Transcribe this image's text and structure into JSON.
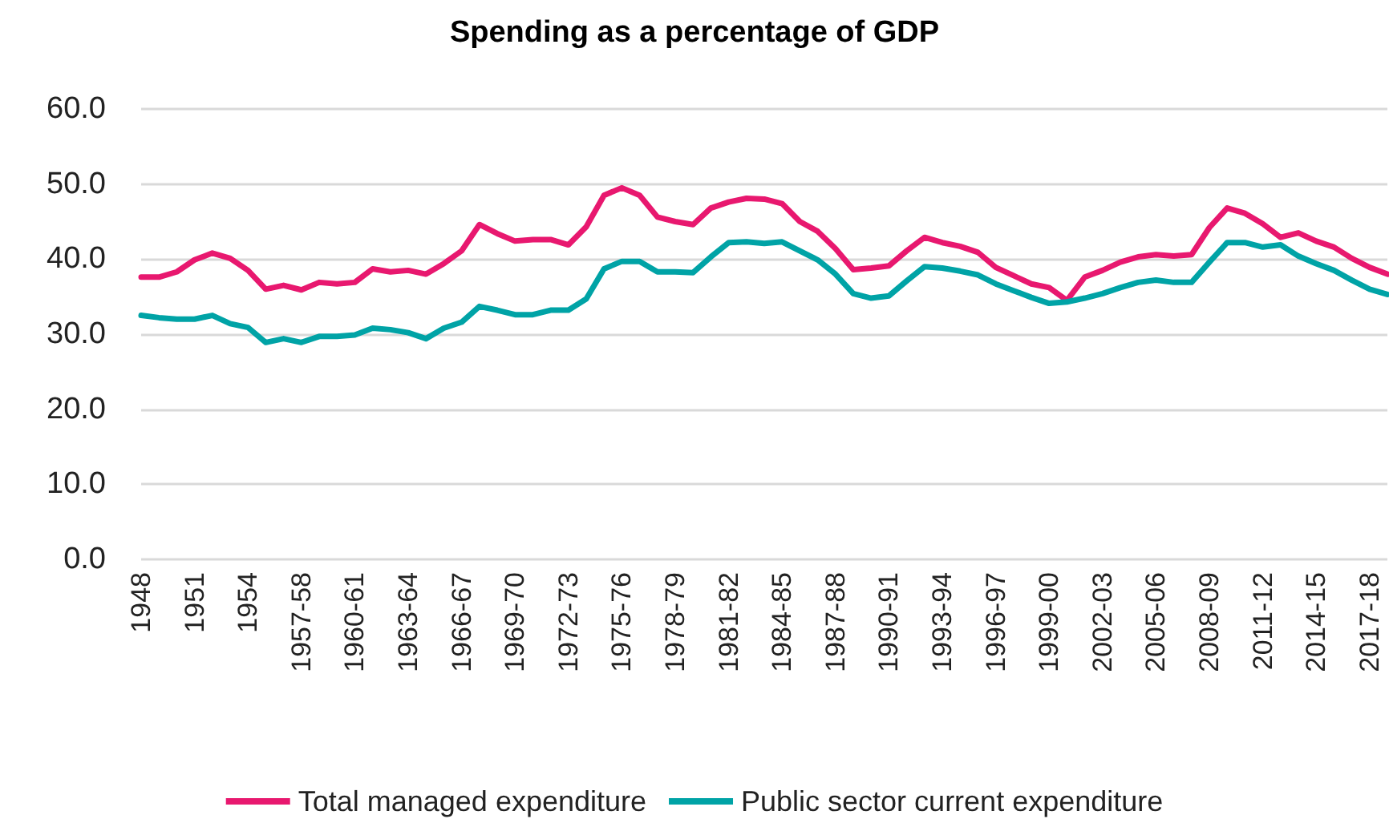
{
  "chart_data": {
    "type": "line",
    "title": "Spending as a percentage of GDP",
    "categories": [
      "1948",
      null,
      null,
      "1951",
      null,
      null,
      "1954",
      null,
      null,
      "1957-58",
      null,
      null,
      "1960-61",
      null,
      null,
      "1963-64",
      null,
      null,
      "1966-67",
      null,
      null,
      "1969-70",
      null,
      null,
      "1972-73",
      null,
      null,
      "1975-76",
      null,
      null,
      "1978-79",
      null,
      null,
      "1981-82",
      null,
      null,
      "1984-85",
      null,
      null,
      "1987-88",
      null,
      null,
      "1990-91",
      null,
      null,
      "1993-94",
      null,
      null,
      "1996-97",
      null,
      null,
      "1999-00",
      null,
      null,
      "2002-03",
      null,
      null,
      "2005-06",
      null,
      null,
      "2008-09",
      null,
      null,
      "2011-12",
      null,
      null,
      "2014-15",
      null,
      null,
      "2017-18",
      null
    ],
    "series": [
      {
        "name": "Total managed expenditure",
        "color": "#e8186f",
        "values": [
          37.6,
          37.6,
          38.3,
          39.9,
          40.8,
          40.1,
          38.5,
          36.0,
          36.5,
          35.9,
          36.9,
          36.7,
          36.9,
          38.7,
          38.3,
          38.5,
          38.0,
          39.4,
          41.1,
          44.6,
          43.4,
          42.4,
          42.6,
          42.6,
          41.9,
          44.3,
          48.5,
          49.5,
          48.5,
          45.6,
          45.0,
          44.6,
          46.8,
          47.6,
          48.1,
          48.0,
          47.4,
          45.0,
          43.7,
          41.4,
          38.6,
          38.8,
          39.1,
          41.1,
          42.9,
          42.2,
          41.7,
          40.9,
          38.9,
          37.8,
          36.7,
          36.2,
          34.5,
          37.6,
          38.5,
          39.6,
          40.3,
          40.6,
          40.4,
          40.6,
          44.2,
          46.8,
          46.1,
          44.7,
          42.9,
          43.5,
          42.4,
          41.6,
          40.1,
          38.9,
          38.0
        ]
      },
      {
        "name": "Public sector current expenditure",
        "color": "#00a3a6",
        "values": [
          32.5,
          32.2,
          32.0,
          32.0,
          32.5,
          31.4,
          30.9,
          28.9,
          29.4,
          28.9,
          29.7,
          29.7,
          29.9,
          30.8,
          30.6,
          30.2,
          29.4,
          30.8,
          31.6,
          33.7,
          33.2,
          32.6,
          32.6,
          33.2,
          33.2,
          34.7,
          38.7,
          39.7,
          39.7,
          38.3,
          38.3,
          38.2,
          40.3,
          42.2,
          42.3,
          42.1,
          42.3,
          41.1,
          39.9,
          38.0,
          35.4,
          34.8,
          35.1,
          37.1,
          39.0,
          38.8,
          38.4,
          37.9,
          36.7,
          35.8,
          34.9,
          34.1,
          34.3,
          34.8,
          35.4,
          36.2,
          36.9,
          37.2,
          36.9,
          36.9,
          39.6,
          42.2,
          42.2,
          41.6,
          41.9,
          40.4,
          39.4,
          38.5,
          37.2,
          36.0,
          35.3
        ]
      }
    ],
    "ylim": [
      0,
      60
    ],
    "yticks": [
      {
        "value": 0,
        "label": "0.0"
      },
      {
        "value": 10,
        "label": "10.0"
      },
      {
        "value": 20,
        "label": "20.0"
      },
      {
        "value": 30,
        "label": "30.0"
      },
      {
        "value": 40,
        "label": "40.0"
      },
      {
        "value": 50,
        "label": "50.0"
      },
      {
        "value": 60,
        "label": "60.0"
      }
    ],
    "grid": "y",
    "legend": "bottom",
    "marker": "none",
    "line_style": "solid"
  }
}
